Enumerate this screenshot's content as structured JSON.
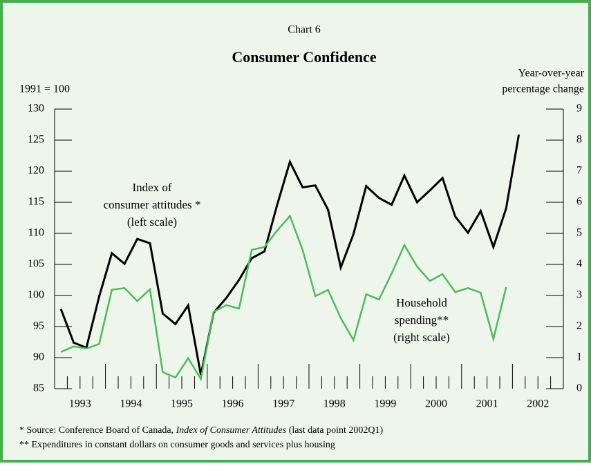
{
  "chart_data": {
    "type": "line",
    "label": "Chart 6",
    "title": "Consumer Confidence",
    "y_label": "1991 = 100",
    "y2_label": [
      "Year-over-year",
      "percentage change"
    ],
    "x": [
      1993.125,
      1993.375,
      1993.625,
      1993.875,
      1994.125,
      1994.375,
      1994.625,
      1994.875,
      1995.125,
      1995.375,
      1995.625,
      1995.875,
      1996.125,
      1996.375,
      1996.625,
      1996.875,
      1997.125,
      1997.375,
      1997.625,
      1997.875,
      1998.125,
      1998.375,
      1998.625,
      1998.875,
      1999.125,
      1999.375,
      1999.625,
      1999.875,
      2000.125,
      2000.375,
      2000.625,
      2000.875,
      2001.125,
      2001.375,
      2001.625,
      2001.875,
      2002.125
    ],
    "xlim": [
      1993,
      2003
    ],
    "xticks": [
      {
        "value": 1993.5,
        "label": "1993"
      },
      {
        "value": 1994.5,
        "label": "1994"
      },
      {
        "value": 1995.5,
        "label": "1995"
      },
      {
        "value": 1996.5,
        "label": "1996"
      },
      {
        "value": 1997.5,
        "label": "1997"
      },
      {
        "value": 1998.5,
        "label": "1998"
      },
      {
        "value": 1999.5,
        "label": "1999"
      },
      {
        "value": 2000.5,
        "label": "2000"
      },
      {
        "value": 2001.5,
        "label": "2001"
      },
      {
        "value": 2002.5,
        "label": "2002"
      }
    ],
    "ylim": [
      85,
      130
    ],
    "yticks": [
      85,
      90,
      95,
      100,
      105,
      110,
      115,
      120,
      125,
      130
    ],
    "y2lim": [
      0,
      9
    ],
    "y2ticks": [
      0,
      1,
      2,
      3,
      4,
      5,
      6,
      7,
      8,
      9
    ],
    "series": [
      {
        "name": "Index of consumer attitudes",
        "color": "#000000",
        "values": [
          97.8,
          92.4,
          91.6,
          99.8,
          106.8,
          105.1,
          109.1,
          108.4,
          97.1,
          95.4,
          98.4,
          87.2,
          97.2,
          99.6,
          102.5,
          106.0,
          107.1,
          114.6,
          121.5,
          117.4,
          117.7,
          113.8,
          104.5,
          109.9,
          117.6,
          115.7,
          114.6,
          119.3,
          115.0,
          116.9,
          118.9,
          112.7,
          110.1,
          113.6,
          107.8,
          114.0,
          125.9
        ]
      },
      {
        "name": "Household spending",
        "color": "#4cbb5a",
        "axis": "y2",
        "values": [
          1.18,
          1.36,
          1.29,
          1.44,
          3.18,
          3.24,
          2.82,
          3.2,
          0.53,
          0.36,
          0.98,
          0.31,
          2.47,
          2.69,
          2.58,
          4.47,
          4.56,
          5.09,
          5.56,
          4.47,
          2.98,
          3.18,
          2.27,
          1.56,
          3.04,
          2.87,
          3.71,
          4.62,
          3.93,
          3.47,
          3.69,
          3.11,
          3.24,
          3.09,
          1.6,
          3.27,
          null
        ]
      }
    ],
    "annotations": [
      {
        "lines": [
          "Index of",
          "consumer attitudes *",
          "(left scale)"
        ]
      },
      {
        "lines": [
          "Household",
          "spending**",
          "(right scale)"
        ]
      }
    ],
    "footnotes": [
      [
        "*  Source: Conference Board of Canada, ",
        "Index of Consumer Attitudes",
        " (last data point 2002Q1)"
      ],
      [
        "** Expenditures in constant dollars on consumer goods and services plus housing"
      ]
    ]
  }
}
